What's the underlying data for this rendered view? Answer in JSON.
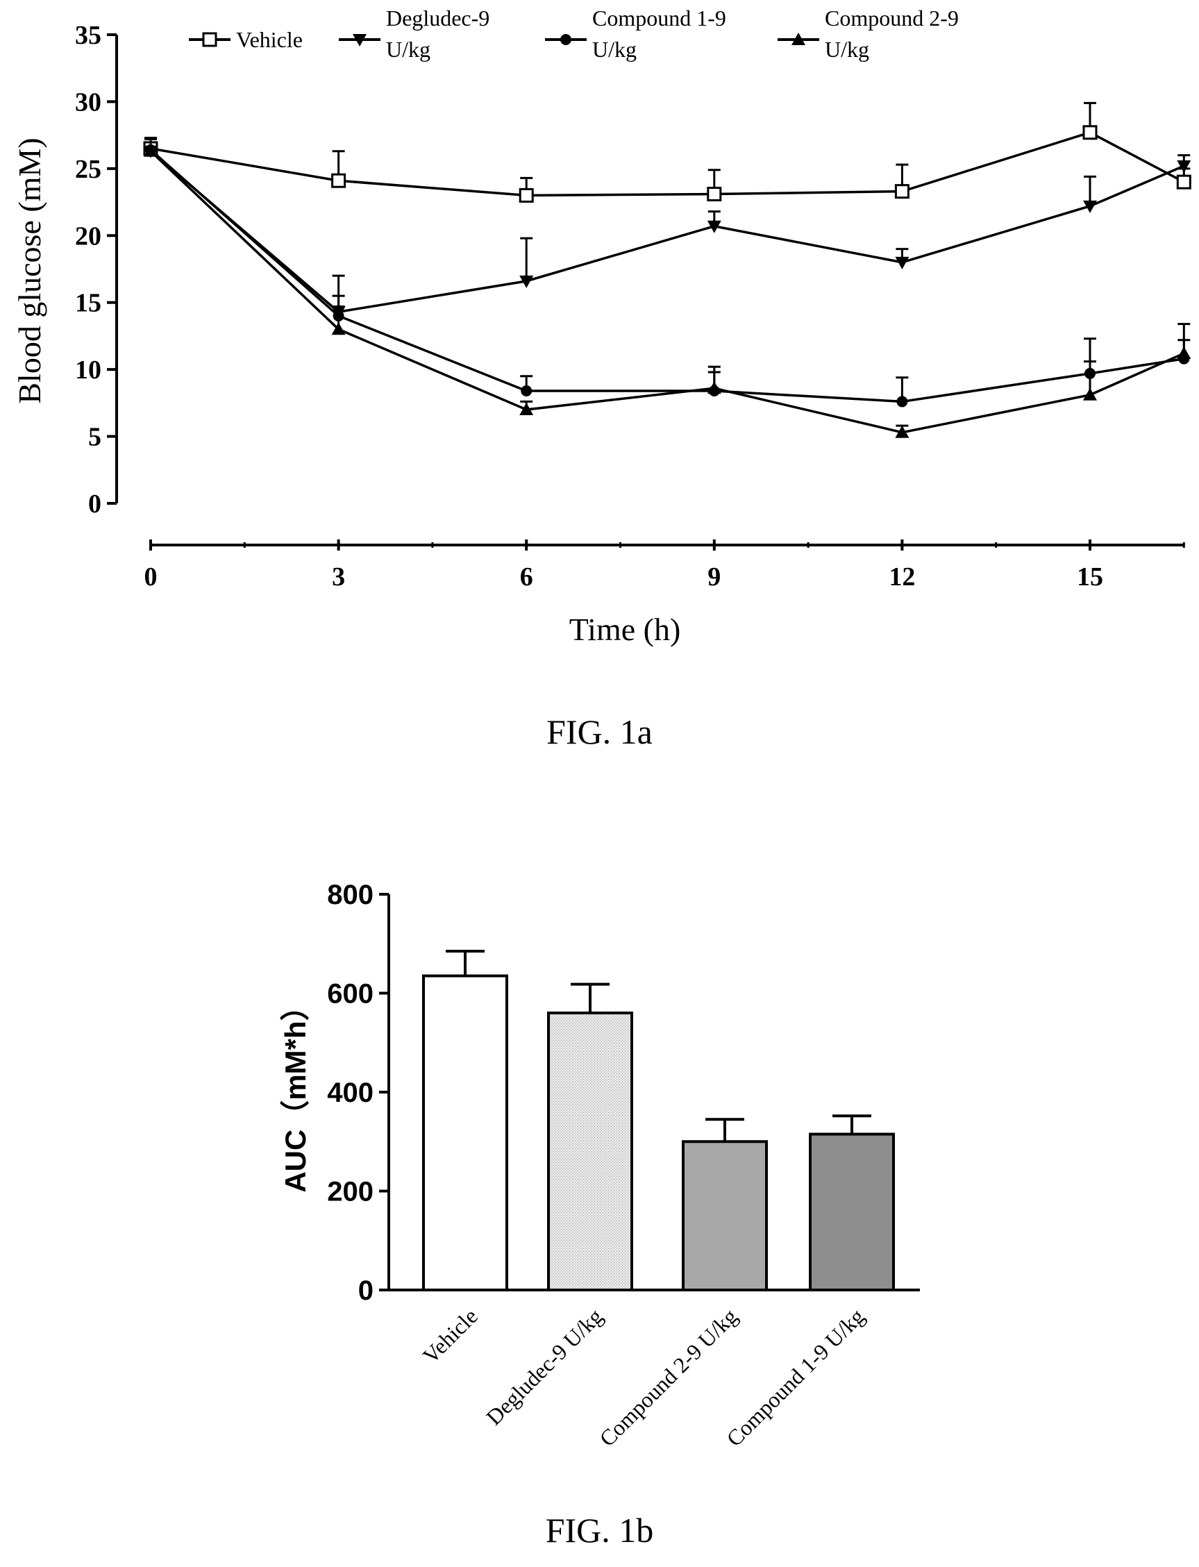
{
  "captions": {
    "fig1a": "FIG. 1a",
    "fig1b": "FIG. 1b"
  },
  "chart_data": [
    {
      "type": "line",
      "xlabel": "Time (h)",
      "ylabel": "Blood glucose (mM)",
      "xlim": [
        0,
        16.5
      ],
      "ylim": [
        0,
        35
      ],
      "x_ticks": [
        "0",
        "3",
        "6",
        "9",
        "12",
        "15"
      ],
      "y_ticks": [
        "0",
        "5",
        "10",
        "15",
        "20",
        "25",
        "30",
        "35"
      ],
      "legend_position": "top",
      "grid": false,
      "x": [
        0,
        3,
        6,
        9,
        12,
        15,
        16.5
      ],
      "series": [
        {
          "name": "Vehicle",
          "marker": "open-square",
          "values": [
            26.5,
            24.1,
            23.0,
            23.1,
            23.3,
            27.7,
            24.0
          ],
          "errors": [
            0.8,
            2.2,
            1.3,
            1.8,
            2.0,
            2.2,
            1.0
          ]
        },
        {
          "name": "Degludec-9 U/kg",
          "marker": "filled-down-triangle",
          "values": [
            26.3,
            14.3,
            16.6,
            20.7,
            18.0,
            22.2,
            25.2
          ],
          "errors": [
            0.9,
            1.2,
            3.2,
            1.1,
            1.0,
            2.2,
            0.8
          ]
        },
        {
          "name": "Compound 1-9 U/kg",
          "marker": "filled-circle",
          "values": [
            26.4,
            14.0,
            8.4,
            8.4,
            7.6,
            9.7,
            10.8
          ],
          "errors": [
            0.8,
            3.0,
            1.1,
            1.8,
            1.8,
            2.6,
            2.6
          ]
        },
        {
          "name": "Compound 2-9 U/kg",
          "marker": "filled-up-triangle",
          "values": [
            26.3,
            13.0,
            7.0,
            8.6,
            5.3,
            8.1,
            11.2
          ],
          "errors": [
            0.9,
            1.7,
            0.6,
            1.2,
            0.5,
            2.5,
            1.0
          ]
        }
      ]
    },
    {
      "type": "bar",
      "ylabel": "AUC（mM*h）",
      "ylim": [
        0,
        800
      ],
      "y_ticks": [
        "0",
        "200",
        "400",
        "600",
        "800"
      ],
      "categories": [
        "Vehicle",
        "Degludec-9 U/kg",
        "Compound 2-9 U/kg",
        "Compound 1-9 U/kg"
      ],
      "values": [
        635,
        560,
        300,
        315
      ],
      "errors": [
        50,
        58,
        45,
        37
      ],
      "bar_fills": [
        "#ffffff",
        "#d9d9d9",
        "#a8a8a8",
        "#8e8e8e"
      ]
    }
  ]
}
